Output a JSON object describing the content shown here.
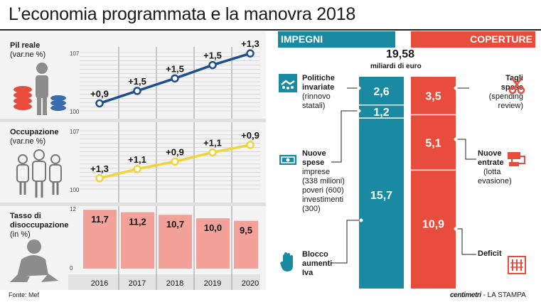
{
  "title": "L’economia programmata e la manovra 2018",
  "source": "Fonte: Mef",
  "footer": {
    "brand": "centimetri",
    "publication": "- LA STAMPA"
  },
  "colors": {
    "pil_line": "#1f4e8c",
    "occ_line": "#f1d33a",
    "unemp_bar": "#f4a19a",
    "impegni": "#1a8aa3",
    "coperture": "#e84c3d"
  },
  "left": {
    "pil": {
      "label": "Pil reale",
      "sub": "(var.ne %)",
      "icon": "person-coins-icon"
    },
    "occ": {
      "label": "Occupazione",
      "sub": "(var.ne %)",
      "icon": "people-icon"
    },
    "unemp": {
      "label1": "Tasso di",
      "label2": "disoccupazione",
      "sub": "(in %)",
      "icon": "sad-person-icon"
    }
  },
  "right": {
    "impegni_title": "IMPEGNI",
    "coperture_title": "COPERTURE",
    "total": "19,58",
    "total_unit": "miliardi di euro",
    "impegni_labels": {
      "politiche": [
        "Politiche",
        "invariate"
      ],
      "politiche_sub": [
        "(rinnovo",
        "statali)"
      ],
      "nuove": [
        "Nuove",
        "spese"
      ],
      "nuove_sub": [
        "imprese",
        "(338 milioni)",
        "poveri (600)",
        "investimenti",
        "(300)"
      ],
      "blocco": [
        "Blocco",
        "aumenti",
        "Iva"
      ]
    },
    "coperture_labels": {
      "tagli": [
        "Tagli",
        "spese"
      ],
      "tagli_sub": [
        "(spending",
        "review)"
      ],
      "entrate": [
        "Nuove",
        "entrate"
      ],
      "entrate_sub": [
        "(lotta",
        "evasione)"
      ],
      "deficit": [
        "Deficit"
      ]
    },
    "icons": [
      "handshake-icon",
      "banknote-icon",
      "hand-stop-icon",
      "scissors-icon",
      "money-icon",
      "calculator-icon"
    ]
  },
  "chart_data": [
    {
      "type": "line",
      "title": "Pil reale",
      "ylabel": "(var.ne %)",
      "x": [
        "2016",
        "2017",
        "2018",
        "2019",
        "2020"
      ],
      "series": [
        {
          "values": [
            0.9,
            1.5,
            1.5,
            1.5,
            1.3
          ],
          "labels": [
            "+0,9",
            "+1,5",
            "+1,5",
            "+1,5",
            "+1,3"
          ]
        }
      ],
      "cumulative_index": [
        100.9,
        102.4,
        103.9,
        105.5,
        106.9
      ],
      "ylim": [
        100,
        107
      ],
      "ytick_labels": [
        "100",
        "107"
      ],
      "grid": true
    },
    {
      "type": "line",
      "title": "Occupazione",
      "ylabel": "(var.ne %)",
      "x": [
        "2016",
        "2017",
        "2018",
        "2019",
        "2020"
      ],
      "series": [
        {
          "values": [
            1.3,
            1.1,
            0.9,
            1.1,
            0.9
          ],
          "labels": [
            "+1,3",
            "+1,1",
            "+0,9",
            "+1,1",
            "+0,9"
          ]
        }
      ],
      "cumulative_index": [
        101.3,
        102.4,
        103.3,
        104.4,
        105.3
      ],
      "ylim": [
        100,
        107
      ],
      "ytick_labels": [
        "100",
        "107"
      ],
      "grid": true
    },
    {
      "type": "bar",
      "title": "Tasso di disoccupazione",
      "ylabel": "(in %)",
      "categories": [
        "2016",
        "2017",
        "2018",
        "2019",
        "2020"
      ],
      "values": [
        11.7,
        11.2,
        10.7,
        10.0,
        9.5
      ],
      "value_labels": [
        "11,7",
        "11,2",
        "10,7",
        "10,0",
        "9,5"
      ],
      "ylim": [
        0,
        12
      ],
      "ytick_labels": [
        "0",
        "12"
      ]
    },
    {
      "type": "bar",
      "title": "IMPEGNI",
      "stacked": true,
      "categories": [
        "Politiche invariate",
        "Nuove spese",
        "Blocco aumenti Iva"
      ],
      "values": [
        2.6,
        1.2,
        15.7
      ],
      "value_labels": [
        "2,6",
        "1,2",
        "15,7"
      ],
      "unit": "miliardi di euro"
    },
    {
      "type": "bar",
      "title": "COPERTURE",
      "stacked": true,
      "categories": [
        "Tagli spese",
        "Nuove entrate",
        "Deficit"
      ],
      "values": [
        3.5,
        5.1,
        10.9
      ],
      "value_labels": [
        "3,5",
        "5,1",
        "10,9"
      ],
      "unit": "miliardi di euro"
    }
  ]
}
